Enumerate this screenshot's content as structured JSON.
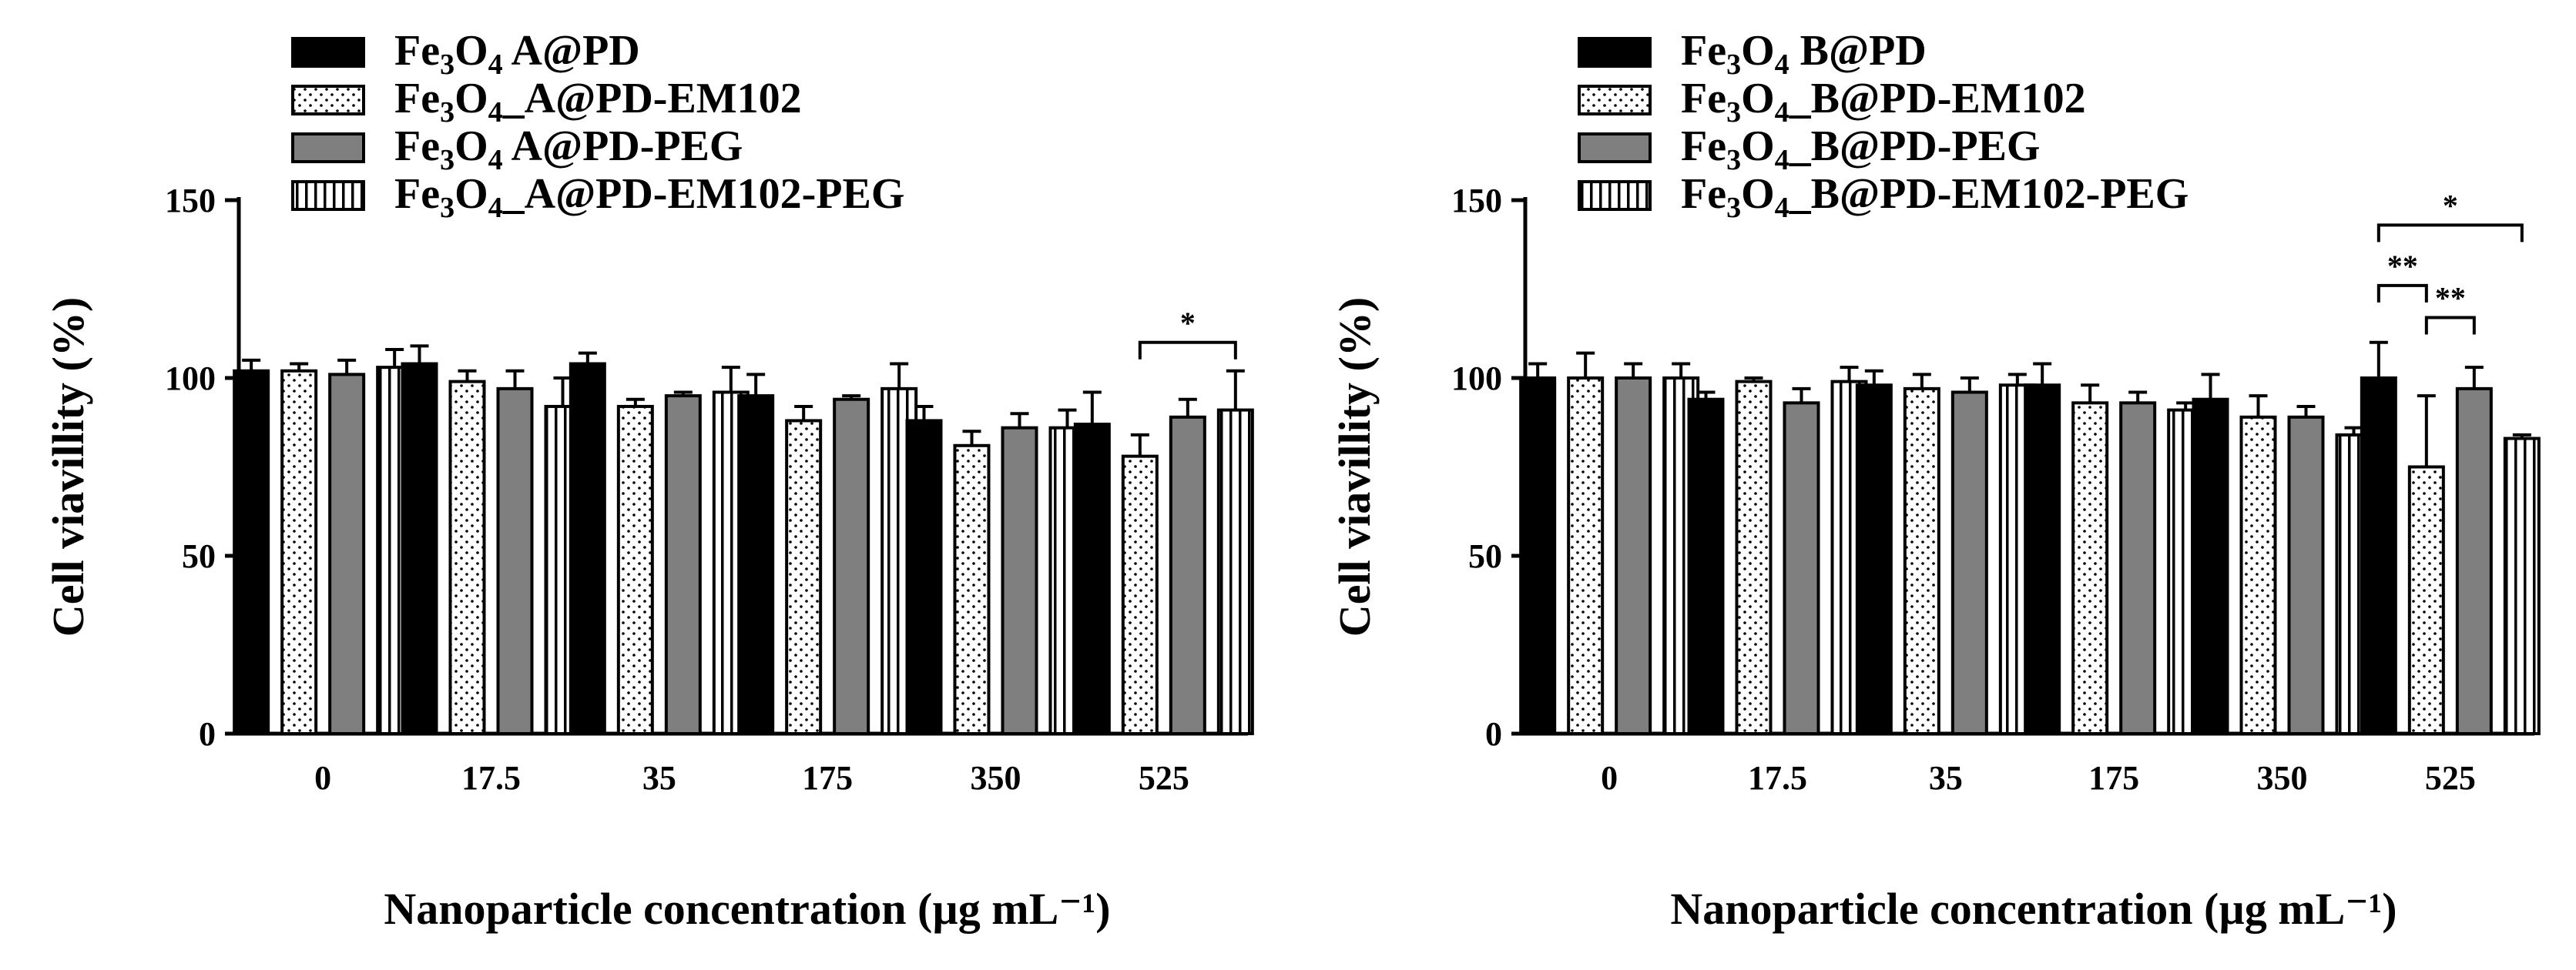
{
  "chart_data": [
    {
      "type": "bar",
      "panel": "A",
      "title": "",
      "xlabel": "Nanoparticle concentration (µg mL⁻¹)",
      "ylabel": "Cell viavillity (%)",
      "ylim": [
        0,
        150
      ],
      "yticks": [
        "0",
        "50",
        "100",
        "150"
      ],
      "categories": [
        "0",
        "17.5",
        "35",
        "175",
        "350",
        "525"
      ],
      "series": [
        {
          "name": "Fe3O4 A@PD",
          "label_base": "Fe",
          "label_sub1": "3",
          "label_mid": "O",
          "label_sub2": "4",
          "label_rest": "  A@PD",
          "pattern": "solid-black",
          "values": [
            102,
            104,
            104,
            95,
            88,
            87
          ],
          "errors": [
            3,
            5,
            3,
            6,
            4,
            9
          ]
        },
        {
          "name": "Fe3O4_A@PD-EM102",
          "label_base": "Fe",
          "label_sub1": "3",
          "label_mid": "O",
          "label_sub2": "4",
          "label_rest": "_A@PD-EM102",
          "pattern": "dotted",
          "values": [
            102,
            99,
            92,
            88,
            81,
            78
          ],
          "errors": [
            2,
            3,
            2,
            4,
            4,
            6
          ]
        },
        {
          "name": "Fe3O4 A@PD-PEG",
          "label_base": "Fe",
          "label_sub1": "3",
          "label_mid": "O",
          "label_sub2": "4",
          "label_rest": "  A@PD-PEG",
          "pattern": "solid-gray",
          "values": [
            101,
            97,
            95,
            94,
            86,
            89
          ],
          "errors": [
            4,
            5,
            1,
            1,
            4,
            5
          ]
        },
        {
          "name": "Fe3O4_A@PD-EM102-PEG",
          "label_base": "Fe",
          "label_sub1": "3",
          "label_mid": "O",
          "label_sub2": "4",
          "label_rest": "_A@PD-EM102-PEG",
          "pattern": "vertical-lines",
          "values": [
            103,
            92,
            96,
            97,
            86,
            91
          ],
          "errors": [
            5,
            8,
            7,
            7,
            5,
            11
          ]
        }
      ],
      "significance": [
        {
          "category": "525",
          "from_series": 1,
          "to_series": 3,
          "label": "*",
          "y": 110
        }
      ]
    },
    {
      "type": "bar",
      "panel": "B",
      "title": "",
      "xlabel": "Nanoparticle concentration (µg mL⁻¹)",
      "ylabel": "Cell viavillity (%)",
      "ylim": [
        0,
        150
      ],
      "yticks": [
        "0",
        "50",
        "100",
        "150"
      ],
      "categories": [
        "0",
        "17.5",
        "35",
        "175",
        "350",
        "525"
      ],
      "series": [
        {
          "name": "Fe3O4 B@PD",
          "label_base": "Fe",
          "label_sub1": "3",
          "label_mid": "O",
          "label_sub2": "4",
          "label_rest": "  B@PD",
          "pattern": "solid-black",
          "values": [
            100,
            94,
            98,
            98,
            94,
            100
          ],
          "errors": [
            4,
            2,
            4,
            6,
            7,
            10
          ]
        },
        {
          "name": "Fe3O4_B@PD-EM102",
          "label_base": "Fe",
          "label_sub1": "3",
          "label_mid": "O",
          "label_sub2": "4",
          "label_rest": "_B@PD-EM102",
          "pattern": "dotted",
          "values": [
            100,
            99,
            97,
            93,
            89,
            75
          ],
          "errors": [
            7,
            1,
            4,
            5,
            6,
            20
          ]
        },
        {
          "name": "Fe3O4_B@PD-PEG",
          "label_base": "Fe",
          "label_sub1": "3",
          "label_mid": "O",
          "label_sub2": "4",
          "label_rest": "_B@PD-PEG",
          "pattern": "solid-gray",
          "values": [
            100,
            93,
            96,
            93,
            89,
            97
          ],
          "errors": [
            4,
            4,
            4,
            3,
            3,
            6
          ]
        },
        {
          "name": "Fe3O4_B@PD-EM102-PEG",
          "label_base": "Fe",
          "label_sub1": "3",
          "label_mid": "O",
          "label_sub2": "4",
          "label_rest": "_B@PD-EM102-PEG",
          "pattern": "vertical-lines",
          "values": [
            100,
            99,
            98,
            91,
            84,
            83
          ],
          "errors": [
            4,
            4,
            3,
            2,
            2,
            1
          ]
        }
      ],
      "significance": [
        {
          "category": "525",
          "from_series": 0,
          "to_series": 3,
          "label": "*",
          "y": 143
        },
        {
          "category": "525",
          "from_series": 0,
          "to_series": 1,
          "label": "**",
          "y": 126
        },
        {
          "category": "525",
          "from_series": 1,
          "to_series": 2,
          "label": "**",
          "y": 117
        }
      ]
    }
  ]
}
